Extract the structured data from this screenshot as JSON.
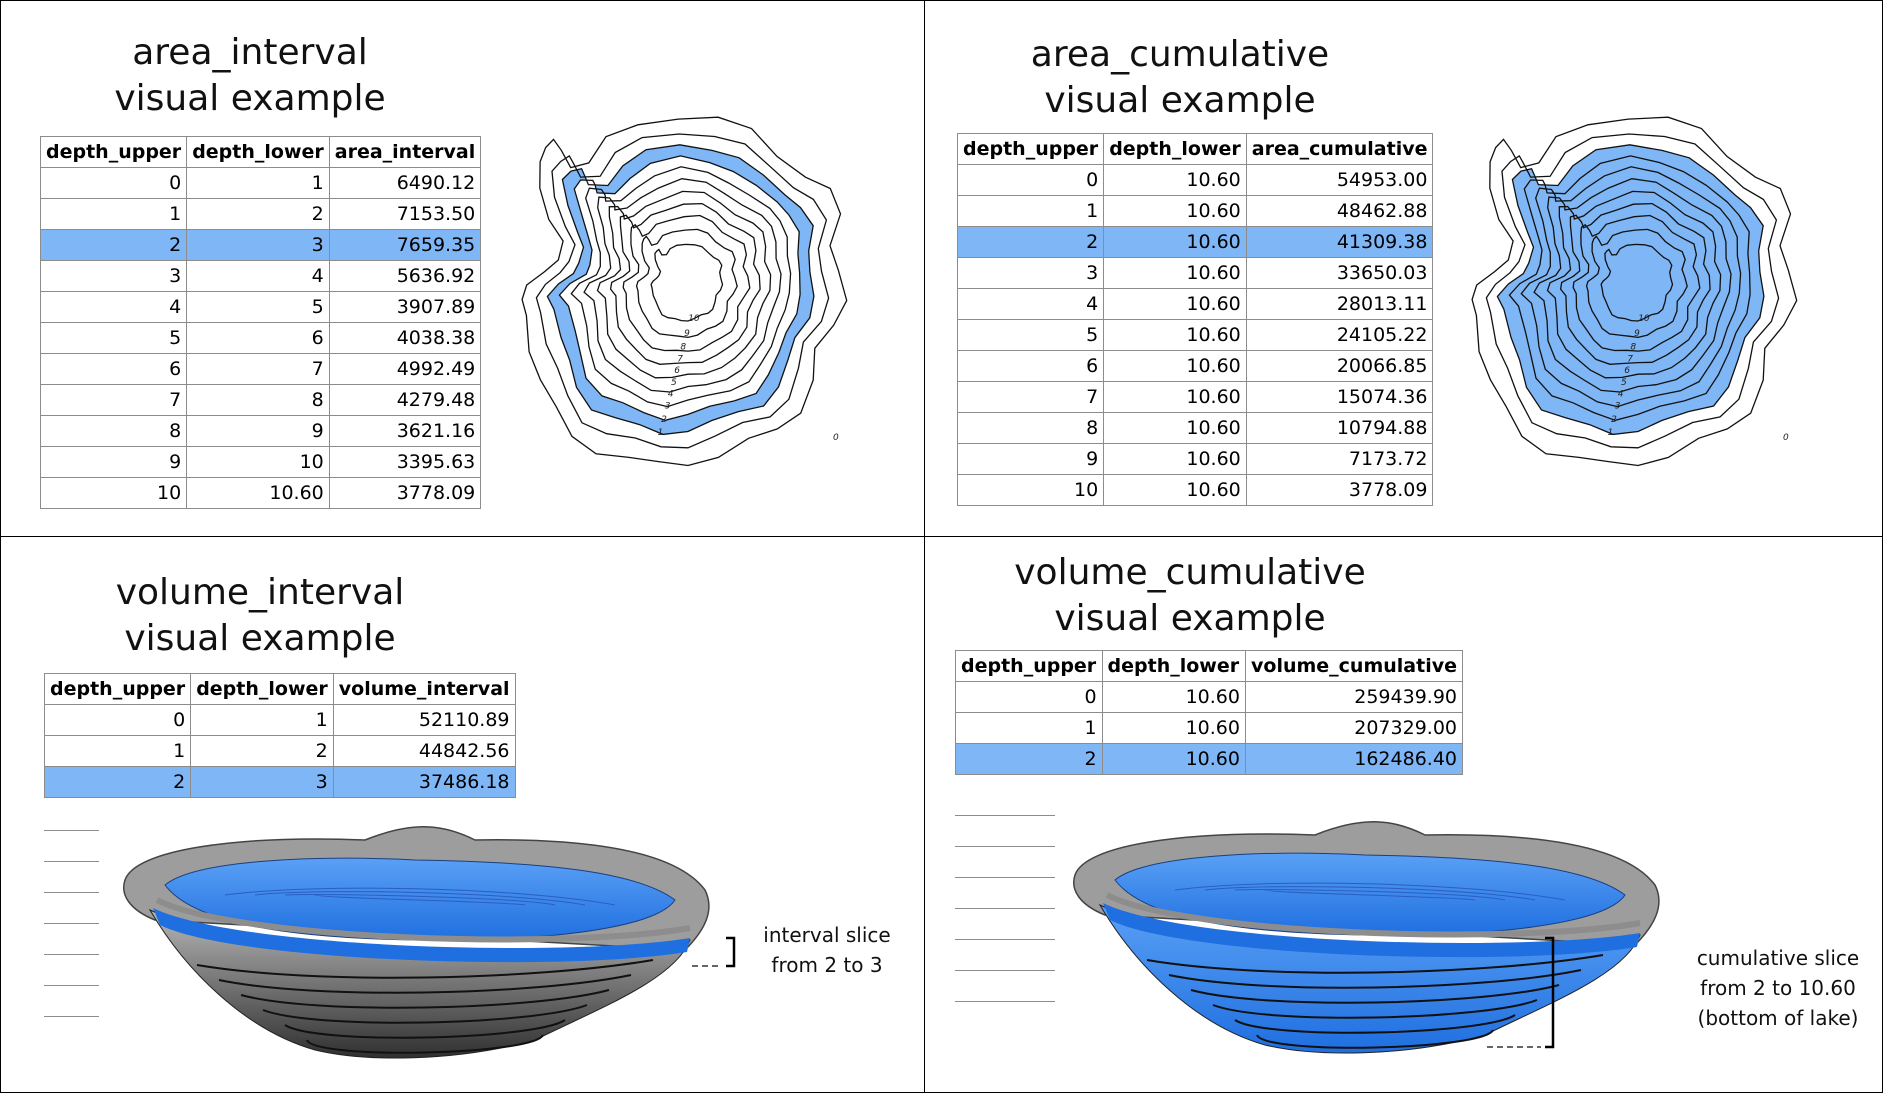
{
  "panels": {
    "area_interval": {
      "title_line1": "area_interval",
      "title_line2": "visual example",
      "headers": [
        "depth_upper",
        "depth_lower",
        "area_interval"
      ],
      "rows": [
        [
          "0",
          "1",
          "6490.12"
        ],
        [
          "1",
          "2",
          "7153.50"
        ],
        [
          "2",
          "3",
          "7659.35"
        ],
        [
          "3",
          "4",
          "5636.92"
        ],
        [
          "4",
          "5",
          "3907.89"
        ],
        [
          "5",
          "6",
          "4038.38"
        ],
        [
          "6",
          "7",
          "4992.49"
        ],
        [
          "7",
          "8",
          "4279.48"
        ],
        [
          "8",
          "9",
          "3621.16"
        ],
        [
          "9",
          "10",
          "3395.63"
        ],
        [
          "10",
          "10.60",
          "3778.09"
        ]
      ],
      "highlight_row": 2
    },
    "area_cumulative": {
      "title_line1": "area_cumulative",
      "title_line2": "visual example",
      "headers": [
        "depth_upper",
        "depth_lower",
        "area_cumulative"
      ],
      "rows": [
        [
          "0",
          "10.60",
          "54953.00"
        ],
        [
          "1",
          "10.60",
          "48462.88"
        ],
        [
          "2",
          "10.60",
          "41309.38"
        ],
        [
          "3",
          "10.60",
          "33650.03"
        ],
        [
          "4",
          "10.60",
          "28013.11"
        ],
        [
          "5",
          "10.60",
          "24105.22"
        ],
        [
          "6",
          "10.60",
          "20066.85"
        ],
        [
          "7",
          "10.60",
          "15074.36"
        ],
        [
          "8",
          "10.60",
          "10794.88"
        ],
        [
          "9",
          "10.60",
          "7173.72"
        ],
        [
          "10",
          "10.60",
          "3778.09"
        ]
      ],
      "highlight_row": 2
    },
    "volume_interval": {
      "title_line1": "volume_interval",
      "title_line2": "visual example",
      "headers": [
        "depth_upper",
        "depth_lower",
        "volume_interval"
      ],
      "rows": [
        [
          "0",
          "1",
          "52110.89"
        ],
        [
          "1",
          "2",
          "44842.56"
        ],
        [
          "2",
          "3",
          "37486.18"
        ]
      ],
      "highlight_row": 2,
      "note_line1": "interval slice",
      "note_line2": "from 2 to 3"
    },
    "volume_cumulative": {
      "title_line1": "volume_cumulative",
      "title_line2": "visual example",
      "headers": [
        "depth_upper",
        "depth_lower",
        "volume_cumulative"
      ],
      "rows": [
        [
          "0",
          "10.60",
          "259439.90"
        ],
        [
          "1",
          "10.60",
          "207329.00"
        ],
        [
          "2",
          "10.60",
          "162486.40"
        ]
      ],
      "highlight_row": 2,
      "note_line1": "cumulative slice",
      "note_line2": "from 2 to 10.60",
      "note_line3": "(bottom of lake)"
    }
  },
  "contour_labels": [
    "0",
    "1",
    "2",
    "3",
    "4",
    "5",
    "6",
    "7",
    "8",
    "9",
    "10"
  ],
  "colors": {
    "highlight": "#7fb6f5",
    "lake_fill": "#7fb6f5",
    "water_3d": "#1f6fe0",
    "water_3d_light": "#5aa0f5",
    "bank_grey": "#9a9a9a"
  }
}
